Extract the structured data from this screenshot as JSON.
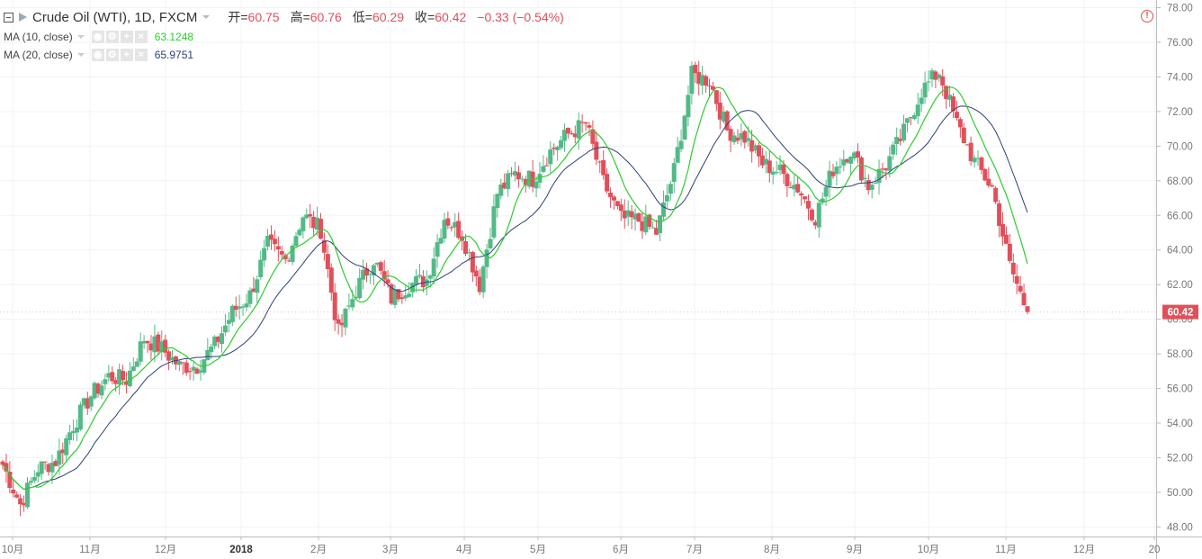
{
  "header": {
    "symbol": "Crude Oil (WTI), 1D, FXCM",
    "ohlc": [
      {
        "label": "开=",
        "value": "60.75"
      },
      {
        "label": "高=",
        "value": "60.76"
      },
      {
        "label": "低=",
        "value": "60.29"
      },
      {
        "label": "收=",
        "value": "60.42"
      }
    ],
    "change": "−0.33 (−0.54%)",
    "icons": {
      "collapse": "collapse-icon",
      "symbol": "flag-icon",
      "alert": "alert-icon"
    }
  },
  "indicators": [
    {
      "name": "MA (10, close)",
      "value": "63.1248",
      "color": "#2ecc2e"
    },
    {
      "name": "MA (20, close)",
      "value": "65.9751",
      "color": "#2b3f7a"
    }
  ],
  "colors": {
    "up": "#53b987",
    "down": "#e0505a",
    "grid": "#f0f3f5",
    "axis": "#777777",
    "background": "#ffffff"
  },
  "chart_data": {
    "type": "candlestick",
    "title": "Crude Oil (WTI), 1D, FXCM",
    "y_range": [
      47.5,
      78.3
    ],
    "y_ticks": [
      "78.00",
      "76.00",
      "74.00",
      "72.00",
      "70.00",
      "68.00",
      "66.00",
      "64.00",
      "62.00",
      "60.00",
      "58.00",
      "56.00",
      "54.00",
      "52.00",
      "50.00",
      "48.00"
    ],
    "x_ticks": [
      "10月",
      "11月",
      "12月",
      "2018",
      "2月",
      "3月",
      "4月",
      "5月",
      "6月",
      "7月",
      "8月",
      "9月",
      "10月",
      "11月",
      "12月",
      "20"
    ],
    "last_price_label": "60.42",
    "grid": true,
    "weekly_closes": [
      {
        "date": "2017-09-29",
        "close": 51.6
      },
      {
        "date": "2017-10-06",
        "close": 49.3
      },
      {
        "date": "2017-10-13",
        "close": 51.4
      },
      {
        "date": "2017-10-20",
        "close": 51.8
      },
      {
        "date": "2017-10-27",
        "close": 53.9
      },
      {
        "date": "2017-11-03",
        "close": 55.6
      },
      {
        "date": "2017-11-10",
        "close": 56.7
      },
      {
        "date": "2017-11-17",
        "close": 56.5
      },
      {
        "date": "2017-11-24",
        "close": 58.9
      },
      {
        "date": "2017-12-01",
        "close": 58.3
      },
      {
        "date": "2017-12-08",
        "close": 57.3
      },
      {
        "date": "2017-12-15",
        "close": 57.3
      },
      {
        "date": "2017-12-22",
        "close": 58.5
      },
      {
        "date": "2017-12-29",
        "close": 60.4
      },
      {
        "date": "2018-01-05",
        "close": 61.4
      },
      {
        "date": "2018-01-12",
        "close": 64.3
      },
      {
        "date": "2018-01-19",
        "close": 63.4
      },
      {
        "date": "2018-01-26",
        "close": 66.0
      },
      {
        "date": "2018-02-02",
        "close": 65.2
      },
      {
        "date": "2018-02-09",
        "close": 59.2
      },
      {
        "date": "2018-02-16",
        "close": 61.7
      },
      {
        "date": "2018-02-23",
        "close": 63.5
      },
      {
        "date": "2018-03-02",
        "close": 61.2
      },
      {
        "date": "2018-03-09",
        "close": 62.0
      },
      {
        "date": "2018-03-16",
        "close": 62.3
      },
      {
        "date": "2018-03-23",
        "close": 65.9
      },
      {
        "date": "2018-03-30",
        "close": 64.9
      },
      {
        "date": "2018-04-06",
        "close": 62.0
      },
      {
        "date": "2018-04-13",
        "close": 67.3
      },
      {
        "date": "2018-04-20",
        "close": 68.4
      },
      {
        "date": "2018-04-27",
        "close": 68.1
      },
      {
        "date": "2018-05-04",
        "close": 69.7
      },
      {
        "date": "2018-05-11",
        "close": 70.7
      },
      {
        "date": "2018-05-18",
        "close": 71.3
      },
      {
        "date": "2018-05-25",
        "close": 67.9
      },
      {
        "date": "2018-06-01",
        "close": 65.8
      },
      {
        "date": "2018-06-08",
        "close": 65.7
      },
      {
        "date": "2018-06-15",
        "close": 65.0
      },
      {
        "date": "2018-06-22",
        "close": 68.6
      },
      {
        "date": "2018-06-29",
        "close": 74.1
      },
      {
        "date": "2018-07-06",
        "close": 73.8
      },
      {
        "date": "2018-07-13",
        "close": 70.9
      },
      {
        "date": "2018-07-20",
        "close": 70.5
      },
      {
        "date": "2018-07-27",
        "close": 69.0
      },
      {
        "date": "2018-08-03",
        "close": 68.5
      },
      {
        "date": "2018-08-10",
        "close": 67.6
      },
      {
        "date": "2018-08-17",
        "close": 65.9
      },
      {
        "date": "2018-08-24",
        "close": 68.7
      },
      {
        "date": "2018-08-31",
        "close": 69.8
      },
      {
        "date": "2018-09-07",
        "close": 67.7
      },
      {
        "date": "2018-09-14",
        "close": 68.9
      },
      {
        "date": "2018-09-21",
        "close": 70.8
      },
      {
        "date": "2018-09-28",
        "close": 73.2
      },
      {
        "date": "2018-10-05",
        "close": 74.3
      },
      {
        "date": "2018-10-12",
        "close": 71.3
      },
      {
        "date": "2018-10-19",
        "close": 69.1
      },
      {
        "date": "2018-10-26",
        "close": 67.6
      },
      {
        "date": "2018-11-02",
        "close": 63.1
      },
      {
        "date": "2018-11-09",
        "close": 60.4
      }
    ],
    "series": [
      {
        "name": "MA (10, close)",
        "last": 63.1248
      },
      {
        "name": "MA (20, close)",
        "last": 65.9751
      }
    ]
  }
}
